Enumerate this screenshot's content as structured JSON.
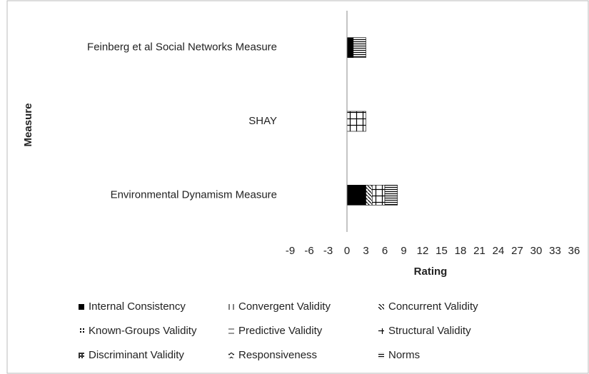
{
  "chart_data": {
    "type": "stacked-barh",
    "xlabel": "Rating",
    "ylabel": "Measure",
    "categories": [
      "Feinberg et al Social Networks Measure",
      "SHAY",
      "Environmental Dynamism Measure"
    ],
    "series": [
      {
        "name": "Internal Consistency",
        "values": [
          1,
          0,
          3
        ]
      },
      {
        "name": "Convergent Validity",
        "values": [
          0,
          0,
          0
        ]
      },
      {
        "name": "Concurrent Validity",
        "values": [
          0,
          0,
          1
        ]
      },
      {
        "name": "Known-Groups Validity",
        "values": [
          0,
          0,
          0
        ]
      },
      {
        "name": "Predictive Validity",
        "values": [
          0,
          0,
          0
        ]
      },
      {
        "name": "Structural Validity",
        "values": [
          0,
          3,
          2
        ]
      },
      {
        "name": "Discriminant Validity",
        "values": [
          0,
          0,
          0
        ]
      },
      {
        "name": "Responsiveness",
        "values": [
          0,
          0,
          0
        ]
      },
      {
        "name": "Norms",
        "values": [
          2,
          0,
          2
        ]
      }
    ],
    "xlim": [
      -9,
      36
    ],
    "xticks": [
      -9,
      -6,
      -3,
      0,
      3,
      6,
      9,
      12,
      15,
      18,
      21,
      24,
      27,
      30,
      33,
      36
    ],
    "legend": "bottom"
  }
}
